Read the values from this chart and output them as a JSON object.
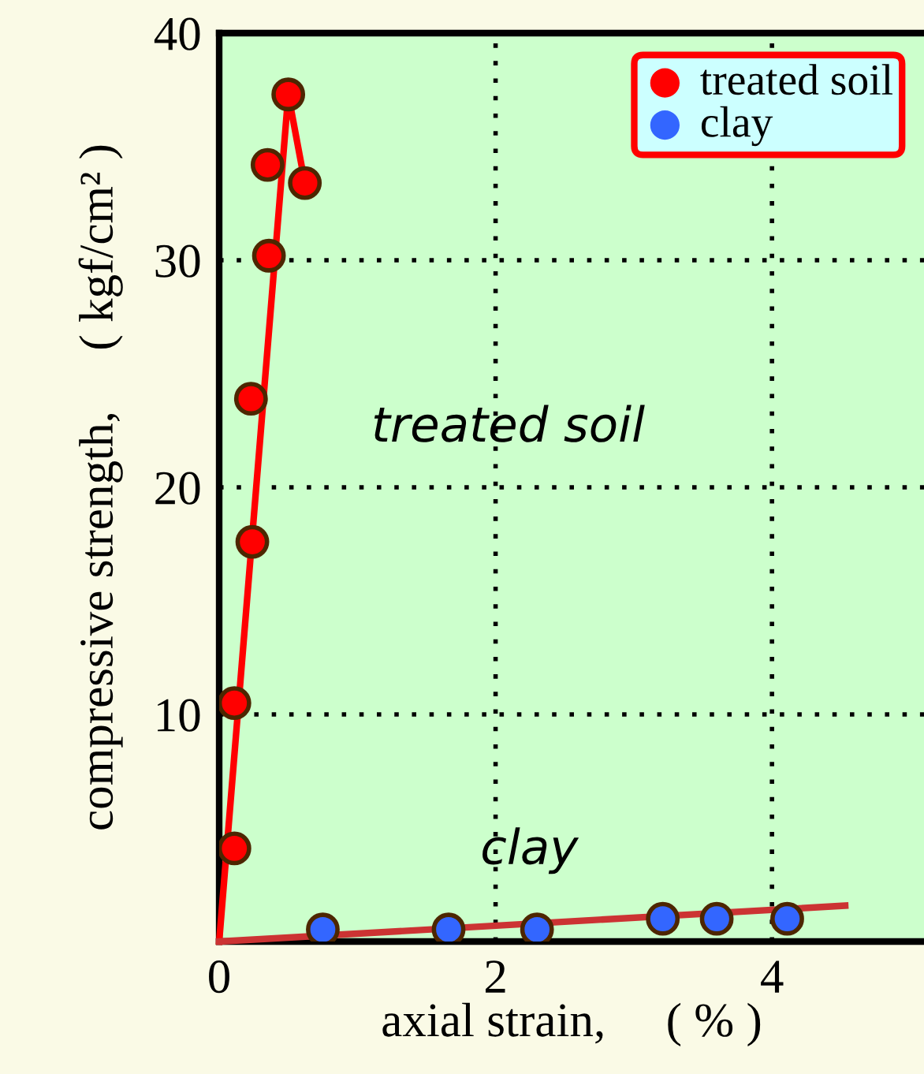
{
  "chart_data": {
    "type": "scatter",
    "xlabel": "axial strain,     ( % )",
    "ylabel": "compressive strength,     ( kgf/cm² )",
    "annotations": [
      "treated soil",
      "clay"
    ],
    "series": [
      {
        "name": "treated soil",
        "color": "#ff0000",
        "x": [
          0.11,
          0.11,
          0.24,
          0.23,
          0.36,
          0.35,
          0.5,
          0.62
        ],
        "values": [
          4.1,
          10.5,
          17.6,
          23.9,
          30.2,
          34.2,
          37.3,
          33.4
        ],
        "marker": "circle"
      },
      {
        "name": "clay",
        "color": "#3366ff",
        "x": [
          0.75,
          1.66,
          2.3,
          3.21,
          3.6,
          4.11
        ],
        "values": [
          0.53,
          0.53,
          0.53,
          1.0,
          1.0,
          1.0
        ],
        "marker": "circle"
      },
      {
        "type": "line",
        "color": "#ff0000",
        "x": [
          0,
          0.5,
          0.62
        ],
        "values": [
          0,
          37.3,
          33.4
        ]
      },
      {
        "type": "line",
        "color": "#cc3333",
        "x": [
          0,
          4.53
        ],
        "values": [
          0,
          1.58
        ]
      }
    ],
    "xlim": [
      0,
      5.1
    ],
    "xticks": [
      0,
      2,
      4
    ],
    "ylim": [
      0,
      40
    ],
    "yticks": [
      10,
      20,
      30,
      40
    ],
    "grid": true,
    "legend": "top right"
  }
}
